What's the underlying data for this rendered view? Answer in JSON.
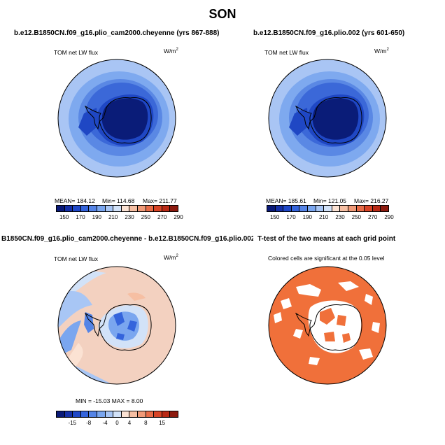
{
  "figure": {
    "season": "SON"
  },
  "panels": {
    "p1": {
      "title": "b.e12.B1850CN.f09_g16.plio_cam2000.cheyenne (yrs 867-888)",
      "var_label": "TOM net LW flux",
      "units": "W/m",
      "units_sup": "2",
      "stats": {
        "mean": "MEAN= 184.12",
        "min": "Min= 114.68",
        "max": "Max= 211.77"
      }
    },
    "p2": {
      "title": "b.e12.B1850CN.f09_g16.plio.002 (yrs 601-650)",
      "var_label": "TOM net LW flux",
      "units": "W/m",
      "units_sup": "2",
      "stats": {
        "mean": "MEAN= 185.61",
        "min": "Min= 121.05",
        "max": "Max= 216.27"
      }
    },
    "p3": {
      "title": "B1850CN.f09_g16.plio_cam2000.cheyenne - b.e12.B1850CN.f09_g16.plio.002",
      "var_label": "TOM net LW flux",
      "units": "W/m",
      "units_sup": "2",
      "stats": {
        "minmax": "MIN = -15.03  MAX =    8.00"
      }
    },
    "p4": {
      "title": "T-test of the two means at each grid point",
      "note": "Colored cells are significant at the 0.05 level"
    }
  },
  "colorbars": {
    "abs": {
      "ticks": [
        "150",
        "170",
        "190",
        "210",
        "230",
        "250",
        "270",
        "290"
      ],
      "colors": [
        "#0a1a78",
        "#1530a8",
        "#1f48c8",
        "#3464dc",
        "#5584e6",
        "#7aa6ef",
        "#a8c6f5",
        "#d2e2f8",
        "#fbe2d3",
        "#f6bfa3",
        "#f09a78",
        "#e86c48",
        "#d84426",
        "#b92a16",
        "#8c1a0e"
      ]
    },
    "diff": {
      "ticks": [
        "-15",
        "-8",
        "-4",
        "0",
        "4",
        "8",
        "15"
      ],
      "colors": [
        "#0a1a78",
        "#1530a8",
        "#1f48c8",
        "#3464dc",
        "#5584e6",
        "#7aa6ef",
        "#a8c6f5",
        "#d2e2f8",
        "#fbe2d3",
        "#f6bfa3",
        "#f09a78",
        "#e86c48",
        "#d84426",
        "#b92a16",
        "#8c1a0e"
      ]
    }
  }
}
